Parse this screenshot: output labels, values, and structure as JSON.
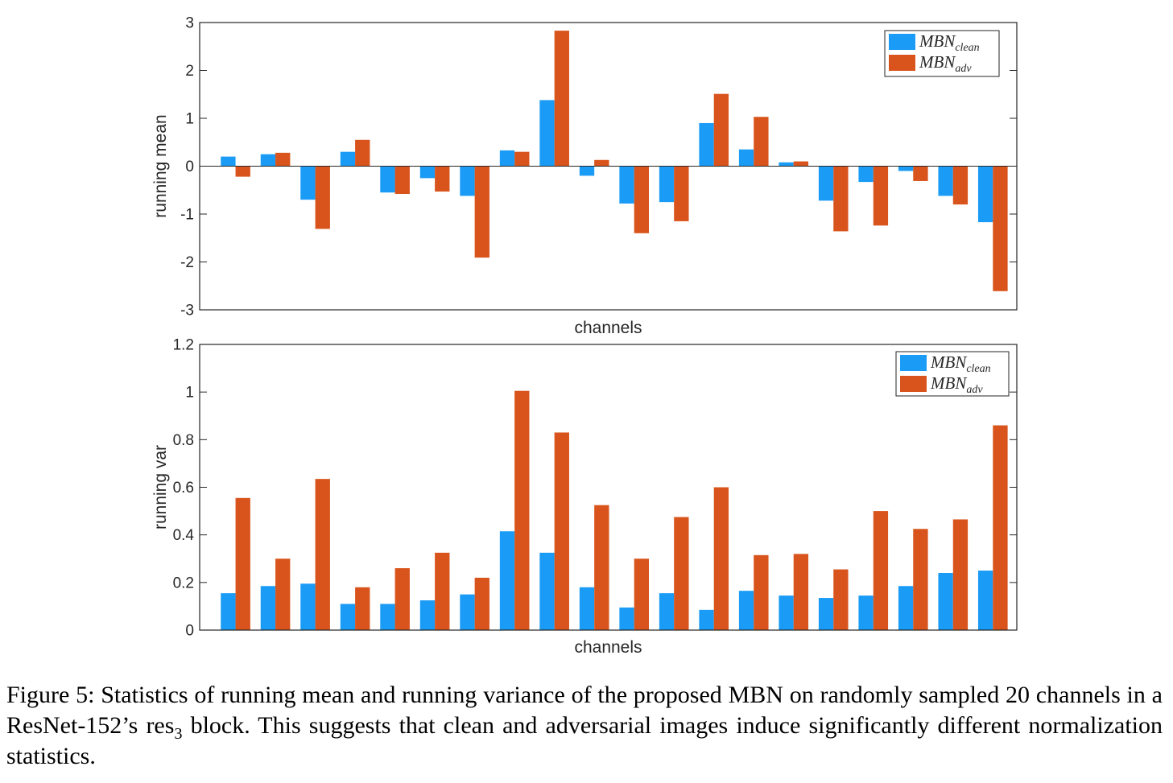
{
  "chart_data": [
    {
      "type": "bar",
      "ylabel": "running mean",
      "xlabel": "channels",
      "ylim": [
        -3,
        3
      ],
      "yticks": [
        3,
        2,
        1,
        0,
        -1,
        -2,
        -3
      ],
      "ytick_labels": [
        "3",
        "2",
        "1",
        "0",
        "-1",
        "-2",
        "-3"
      ],
      "legend_position": "top-right",
      "grid": false,
      "categories_count": 20,
      "series": [
        {
          "label": "MBN",
          "label_sub": "clean",
          "color": "#1a9bf5",
          "values": [
            0.2,
            0.25,
            -0.7,
            0.3,
            -0.55,
            -0.25,
            -0.62,
            0.33,
            1.38,
            -0.2,
            -0.78,
            -0.75,
            0.9,
            0.35,
            0.08,
            -0.72,
            -0.33,
            -0.1,
            -0.62,
            -1.17
          ]
        },
        {
          "label": "MBN",
          "label_sub": "adv",
          "color": "#d9541c",
          "values": [
            -0.22,
            0.28,
            -1.31,
            0.55,
            -0.58,
            -0.53,
            -1.91,
            0.3,
            2.83,
            0.13,
            -1.4,
            -1.15,
            1.51,
            1.03,
            0.1,
            -1.36,
            -1.24,
            -0.31,
            -0.8,
            -2.61
          ]
        }
      ]
    },
    {
      "type": "bar",
      "ylabel": "running var",
      "xlabel": "channels",
      "ylim": [
        0,
        1.2
      ],
      "yticks": [
        1.2,
        1,
        0.8,
        0.6,
        0.4,
        0.2,
        0
      ],
      "ytick_labels": [
        "1.2",
        "1",
        "0.8",
        "0.6",
        "0.4",
        "0.2",
        "0"
      ],
      "legend_position": "top-right",
      "grid": false,
      "categories_count": 20,
      "series": [
        {
          "label": "MBN",
          "label_sub": "clean",
          "color": "#1a9bf5",
          "values": [
            0.155,
            0.185,
            0.195,
            0.11,
            0.11,
            0.125,
            0.15,
            0.415,
            0.325,
            0.18,
            0.095,
            0.155,
            0.085,
            0.165,
            0.145,
            0.135,
            0.145,
            0.185,
            0.24,
            0.25
          ]
        },
        {
          "label": "MBN",
          "label_sub": "adv",
          "color": "#d9541c",
          "values": [
            0.555,
            0.3,
            0.635,
            0.18,
            0.26,
            0.325,
            0.22,
            1.005,
            0.83,
            0.525,
            0.3,
            0.475,
            0.6,
            0.315,
            0.32,
            0.255,
            0.5,
            0.425,
            0.465,
            0.86
          ]
        }
      ]
    }
  ],
  "caption": {
    "text_before_sub": "Figure 5:  Statistics of running mean and running variance of the proposed MBN on randomly sampled 20 channels in a ResNet-152’s res",
    "sub": "3",
    "text_after_sub": " block. This suggests that clean and adversarial images induce significantly different normalization statistics."
  }
}
